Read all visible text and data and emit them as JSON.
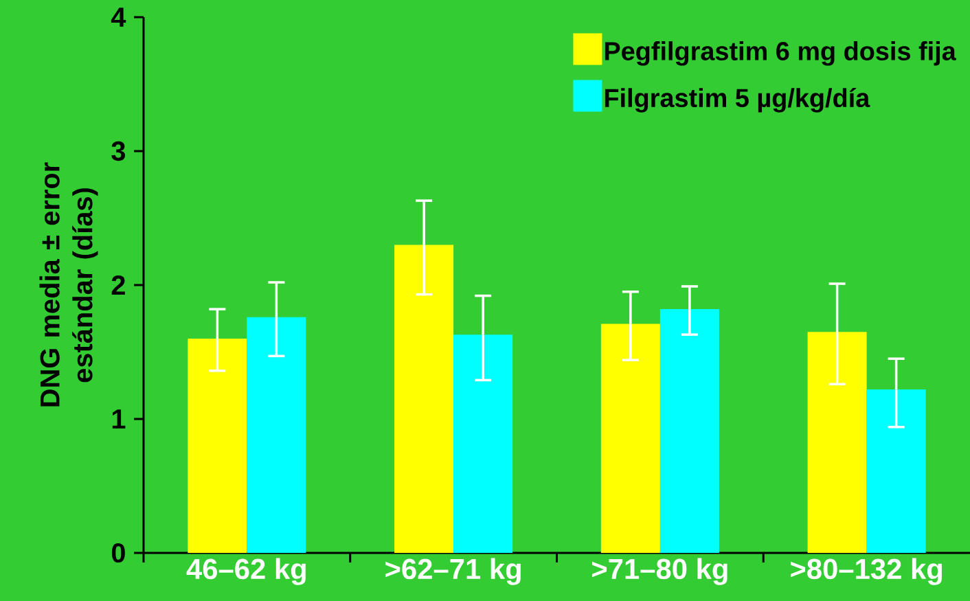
{
  "chart_data": {
    "type": "bar",
    "ylabel": "DNG media ± error estándar (días)",
    "categories": [
      "46–62 kg",
      ">62–71 kg",
      ">71–80 kg",
      ">80–132 kg"
    ],
    "series": [
      {
        "name": "Pegfilgrastim 6 mg dosis fija",
        "color": "#ffff00",
        "values": [
          1.6,
          2.3,
          1.71,
          1.65
        ],
        "errors": [
          [
            1.36,
            1.82
          ],
          [
            1.93,
            2.63
          ],
          [
            1.44,
            1.95
          ],
          [
            1.26,
            2.01
          ]
        ]
      },
      {
        "name": "Filgrastim 5 µg/kg/día",
        "color": "#00ffff",
        "values": [
          1.76,
          1.63,
          1.82,
          1.22
        ],
        "errors": [
          [
            1.47,
            2.02
          ],
          [
            1.29,
            1.92
          ],
          [
            1.63,
            1.99
          ],
          [
            0.94,
            1.45
          ]
        ]
      }
    ],
    "ylim": [
      0,
      4
    ],
    "yticks": [
      0,
      1,
      2,
      3,
      4
    ],
    "grid": false,
    "legend": "top right"
  }
}
